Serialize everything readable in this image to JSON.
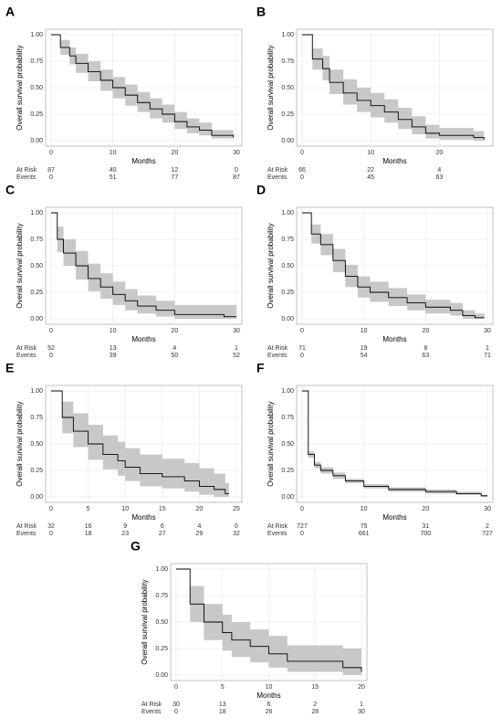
{
  "chart_data": [
    {
      "type": "step",
      "panel": "A",
      "ylabel": "Overall survival probability",
      "xlabel": "Months",
      "color": "#000000",
      "band_color": "#c8c8c8",
      "xlim": [
        0,
        30
      ],
      "ylim": [
        0,
        1
      ],
      "xticks": [
        0,
        10,
        20,
        30
      ],
      "yticks": [
        {
          "value": 0,
          "label": "0.00"
        },
        {
          "value": 0.25,
          "label": "0.25"
        },
        {
          "value": 0.5,
          "label": "0.50"
        },
        {
          "value": 0.75,
          "label": "0.75"
        },
        {
          "value": 1,
          "label": "1.00"
        }
      ],
      "x": [
        0,
        1.5,
        3,
        4,
        6,
        8,
        10,
        12,
        14,
        16,
        18,
        20,
        22,
        24,
        26,
        29.5
      ],
      "values": [
        1,
        0.88,
        0.8,
        0.73,
        0.65,
        0.57,
        0.5,
        0.43,
        0.36,
        0.3,
        0.25,
        0.18,
        0.13,
        0.1,
        0.05,
        0.03
      ],
      "lower": [
        1,
        0.81,
        0.72,
        0.64,
        0.56,
        0.47,
        0.4,
        0.33,
        0.27,
        0.21,
        0.17,
        0.11,
        0.07,
        0.05,
        0.02,
        0.03
      ],
      "upper": [
        1,
        0.95,
        0.88,
        0.82,
        0.75,
        0.67,
        0.6,
        0.53,
        0.46,
        0.4,
        0.34,
        0.27,
        0.21,
        0.17,
        0.1,
        0.03
      ],
      "at_risk_label": "At Risk",
      "events_label": "Events",
      "at_risk": [
        87,
        40,
        12,
        0
      ],
      "events": [
        0,
        51,
        77,
        87
      ]
    },
    {
      "type": "step",
      "panel": "B",
      "ylabel": "Overall survival probability",
      "xlabel": "Months",
      "color": "#000000",
      "band_color": "#c8c8c8",
      "xlim": [
        0,
        27
      ],
      "ylim": [
        0,
        1
      ],
      "xticks": [
        0,
        10,
        20
      ],
      "yticks": [
        {
          "value": 0,
          "label": "0.00"
        },
        {
          "value": 0.25,
          "label": "0.25"
        },
        {
          "value": 0.5,
          "label": "0.50"
        },
        {
          "value": 0.75,
          "label": "0.75"
        },
        {
          "value": 1,
          "label": "1.00"
        }
      ],
      "x": [
        0,
        1.5,
        3,
        4,
        6,
        8,
        10,
        12,
        14,
        16,
        18,
        20,
        25,
        26.5
      ],
      "values": [
        1,
        0.77,
        0.68,
        0.55,
        0.45,
        0.38,
        0.33,
        0.27,
        0.2,
        0.13,
        0.07,
        0.05,
        0.03,
        0.01
      ],
      "lower": [
        1,
        0.67,
        0.57,
        0.44,
        0.34,
        0.27,
        0.22,
        0.17,
        0.11,
        0.06,
        0.02,
        0.01,
        0,
        0.01
      ],
      "upper": [
        1,
        0.87,
        0.8,
        0.67,
        0.58,
        0.5,
        0.45,
        0.39,
        0.31,
        0.23,
        0.15,
        0.12,
        0.09,
        0.01
      ],
      "at_risk_label": "At Risk",
      "events_label": "Events",
      "at_risk": [
        66,
        22,
        4
      ],
      "events": [
        0,
        45,
        63
      ]
    },
    {
      "type": "step",
      "panel": "C",
      "ylabel": "Overall survival probability",
      "xlabel": "Months",
      "color": "#000000",
      "band_color": "#c8c8c8",
      "xlim": [
        0,
        30
      ],
      "ylim": [
        0,
        1
      ],
      "xticks": [
        0,
        10,
        20,
        30
      ],
      "yticks": [
        {
          "value": 0,
          "label": "0.00"
        },
        {
          "value": 0.25,
          "label": "0.25"
        },
        {
          "value": 0.5,
          "label": "0.50"
        },
        {
          "value": 0.75,
          "label": "0.75"
        },
        {
          "value": 1,
          "label": "1.00"
        }
      ],
      "x": [
        0,
        1,
        2,
        4,
        6,
        8,
        10,
        12,
        14,
        17,
        20,
        28,
        30
      ],
      "values": [
        1,
        0.75,
        0.62,
        0.5,
        0.38,
        0.3,
        0.23,
        0.17,
        0.12,
        0.08,
        0.04,
        0.02,
        0.02
      ],
      "lower": [
        1,
        0.63,
        0.5,
        0.37,
        0.26,
        0.19,
        0.13,
        0.08,
        0.05,
        0.02,
        0,
        0,
        0.02
      ],
      "upper": [
        1,
        0.87,
        0.75,
        0.64,
        0.52,
        0.43,
        0.35,
        0.28,
        0.22,
        0.17,
        0.13,
        0.13,
        0.02
      ],
      "at_risk_label": "At Risk",
      "events_label": "Events",
      "at_risk": [
        52,
        13,
        4,
        1
      ],
      "events": [
        0,
        39,
        50,
        52
      ]
    },
    {
      "type": "step",
      "panel": "D",
      "ylabel": "Overall survival probability",
      "xlabel": "Months",
      "color": "#000000",
      "band_color": "#c8c8c8",
      "xlim": [
        0,
        30
      ],
      "ylim": [
        0,
        1
      ],
      "xticks": [
        0,
        10,
        20,
        30
      ],
      "yticks": [
        {
          "value": 0,
          "label": "0.00"
        },
        {
          "value": 0.25,
          "label": "0.25"
        },
        {
          "value": 0.5,
          "label": "0.50"
        },
        {
          "value": 0.75,
          "label": "0.75"
        },
        {
          "value": 1,
          "label": "1.00"
        }
      ],
      "x": [
        0,
        1.5,
        3,
        5,
        7,
        9,
        11,
        14,
        17,
        20,
        24,
        26,
        28,
        29.5
      ],
      "values": [
        1,
        0.8,
        0.7,
        0.55,
        0.4,
        0.3,
        0.25,
        0.2,
        0.15,
        0.11,
        0.08,
        0.03,
        0.01,
        0.01
      ],
      "lower": [
        1,
        0.71,
        0.6,
        0.44,
        0.3,
        0.2,
        0.16,
        0.12,
        0.08,
        0.05,
        0.03,
        0,
        0,
        0.01
      ],
      "upper": [
        1,
        0.89,
        0.8,
        0.66,
        0.51,
        0.4,
        0.35,
        0.29,
        0.23,
        0.18,
        0.15,
        0.08,
        0.05,
        0.01
      ],
      "at_risk_label": "At Risk",
      "events_label": "Events",
      "at_risk": [
        71,
        19,
        8,
        1
      ],
      "events": [
        0,
        54,
        63,
        71
      ]
    },
    {
      "type": "step",
      "panel": "E",
      "ylabel": "Overall survival probability",
      "xlabel": "Months",
      "color": "#000000",
      "band_color": "#c8c8c8",
      "xlim": [
        0,
        25
      ],
      "ylim": [
        0,
        1
      ],
      "xticks": [
        0,
        5,
        10,
        15,
        20,
        25
      ],
      "yticks": [
        {
          "value": 0,
          "label": "0.00"
        },
        {
          "value": 0.25,
          "label": "0.25"
        },
        {
          "value": 0.5,
          "label": "0.50"
        },
        {
          "value": 0.75,
          "label": "0.75"
        },
        {
          "value": 1,
          "label": "1.00"
        }
      ],
      "x": [
        0,
        1.5,
        3,
        5,
        7,
        9,
        10,
        12,
        15,
        18,
        20,
        22,
        23.5,
        24
      ],
      "values": [
        1,
        0.75,
        0.62,
        0.5,
        0.4,
        0.34,
        0.28,
        0.22,
        0.19,
        0.15,
        0.1,
        0.07,
        0.03,
        0.03
      ],
      "lower": [
        1,
        0.6,
        0.47,
        0.35,
        0.26,
        0.2,
        0.15,
        0.1,
        0.08,
        0.05,
        0.02,
        0,
        0,
        0.03
      ],
      "upper": [
        1,
        0.9,
        0.79,
        0.68,
        0.58,
        0.52,
        0.46,
        0.4,
        0.36,
        0.32,
        0.27,
        0.22,
        0.13,
        0.03
      ],
      "at_risk_label": "At Risk",
      "events_label": "Events",
      "at_risk": [
        32,
        16,
        9,
        6,
        4,
        0
      ],
      "events": [
        0,
        18,
        23,
        27,
        29,
        32
      ]
    },
    {
      "type": "step",
      "panel": "F",
      "ylabel": "Overall survival probability",
      "xlabel": "Months",
      "color": "#000000",
      "band_color": "#c8c8c8",
      "xlim": [
        0,
        30
      ],
      "ylim": [
        0,
        1
      ],
      "xticks": [
        0,
        10,
        20,
        30
      ],
      "yticks": [
        {
          "value": 0,
          "label": "0.00"
        },
        {
          "value": 0.25,
          "label": "0.25"
        },
        {
          "value": 0.5,
          "label": "0.50"
        },
        {
          "value": 0.75,
          "label": "0.75"
        },
        {
          "value": 1,
          "label": "1.00"
        }
      ],
      "x": [
        0,
        1,
        2,
        3,
        5,
        7,
        10,
        14,
        20,
        25,
        29,
        30
      ],
      "values": [
        1,
        0.4,
        0.3,
        0.25,
        0.2,
        0.15,
        0.1,
        0.07,
        0.05,
        0.03,
        0.01,
        0.01
      ],
      "lower": [
        1,
        0.37,
        0.27,
        0.22,
        0.17,
        0.13,
        0.08,
        0.05,
        0.03,
        0.02,
        0,
        0.01
      ],
      "upper": [
        1,
        0.43,
        0.33,
        0.28,
        0.23,
        0.17,
        0.12,
        0.09,
        0.07,
        0.05,
        0.02,
        0.01
      ],
      "at_risk_label": "At Risk",
      "events_label": "Events",
      "at_risk": [
        727,
        75,
        31,
        2
      ],
      "events": [
        0,
        661,
        700,
        727
      ]
    },
    {
      "type": "step",
      "panel": "G",
      "ylabel": "Overall survival probability",
      "xlabel": "Months",
      "color": "#000000",
      "band_color": "#c8c8c8",
      "xlim": [
        0,
        20
      ],
      "ylim": [
        0,
        1
      ],
      "xticks": [
        0,
        5,
        10,
        15,
        20
      ],
      "yticks": [
        {
          "value": 0,
          "label": "0.00"
        },
        {
          "value": 0.25,
          "label": "0.25"
        },
        {
          "value": 0.5,
          "label": "0.50"
        },
        {
          "value": 0.75,
          "label": "0.75"
        },
        {
          "value": 1,
          "label": "1.00"
        }
      ],
      "x": [
        0,
        1.5,
        3,
        5,
        6,
        8,
        10,
        12,
        18,
        20
      ],
      "values": [
        1,
        0.67,
        0.5,
        0.4,
        0.33,
        0.27,
        0.2,
        0.13,
        0.07,
        0.03
      ],
      "lower": [
        1,
        0.5,
        0.33,
        0.23,
        0.17,
        0.12,
        0.07,
        0.03,
        0,
        0.03
      ],
      "upper": [
        1,
        0.84,
        0.67,
        0.57,
        0.5,
        0.43,
        0.37,
        0.28,
        0.25,
        0.03
      ],
      "at_risk_label": "At Risk",
      "events_label": "Events",
      "at_risk": [
        30,
        13,
        6,
        2,
        1
      ],
      "events": [
        0,
        18,
        26,
        28,
        30
      ]
    }
  ]
}
